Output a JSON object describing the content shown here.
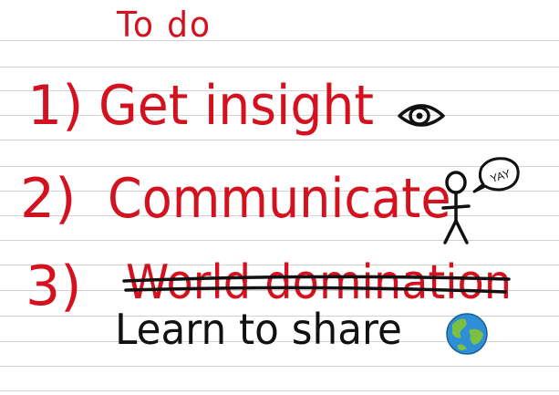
{
  "title": "To do",
  "items": [
    {
      "number": "1)",
      "text": "Get insight",
      "icon": "eye-icon"
    },
    {
      "number": "2)",
      "text": "Communicate",
      "icon": "stick-figure-icon"
    },
    {
      "number": "3)",
      "text": "World domination",
      "status": "struck-through"
    }
  ],
  "replacement_text": "Learn to share",
  "speech_bubble_text": "YAY",
  "globe_icon": "globe-icon",
  "colors": {
    "ink_red": "#d4111e",
    "ink_black": "#111111",
    "rule_line": "#d2d2d2",
    "globe_ocean": "#2e8fd6",
    "globe_land": "#7cc043"
  }
}
